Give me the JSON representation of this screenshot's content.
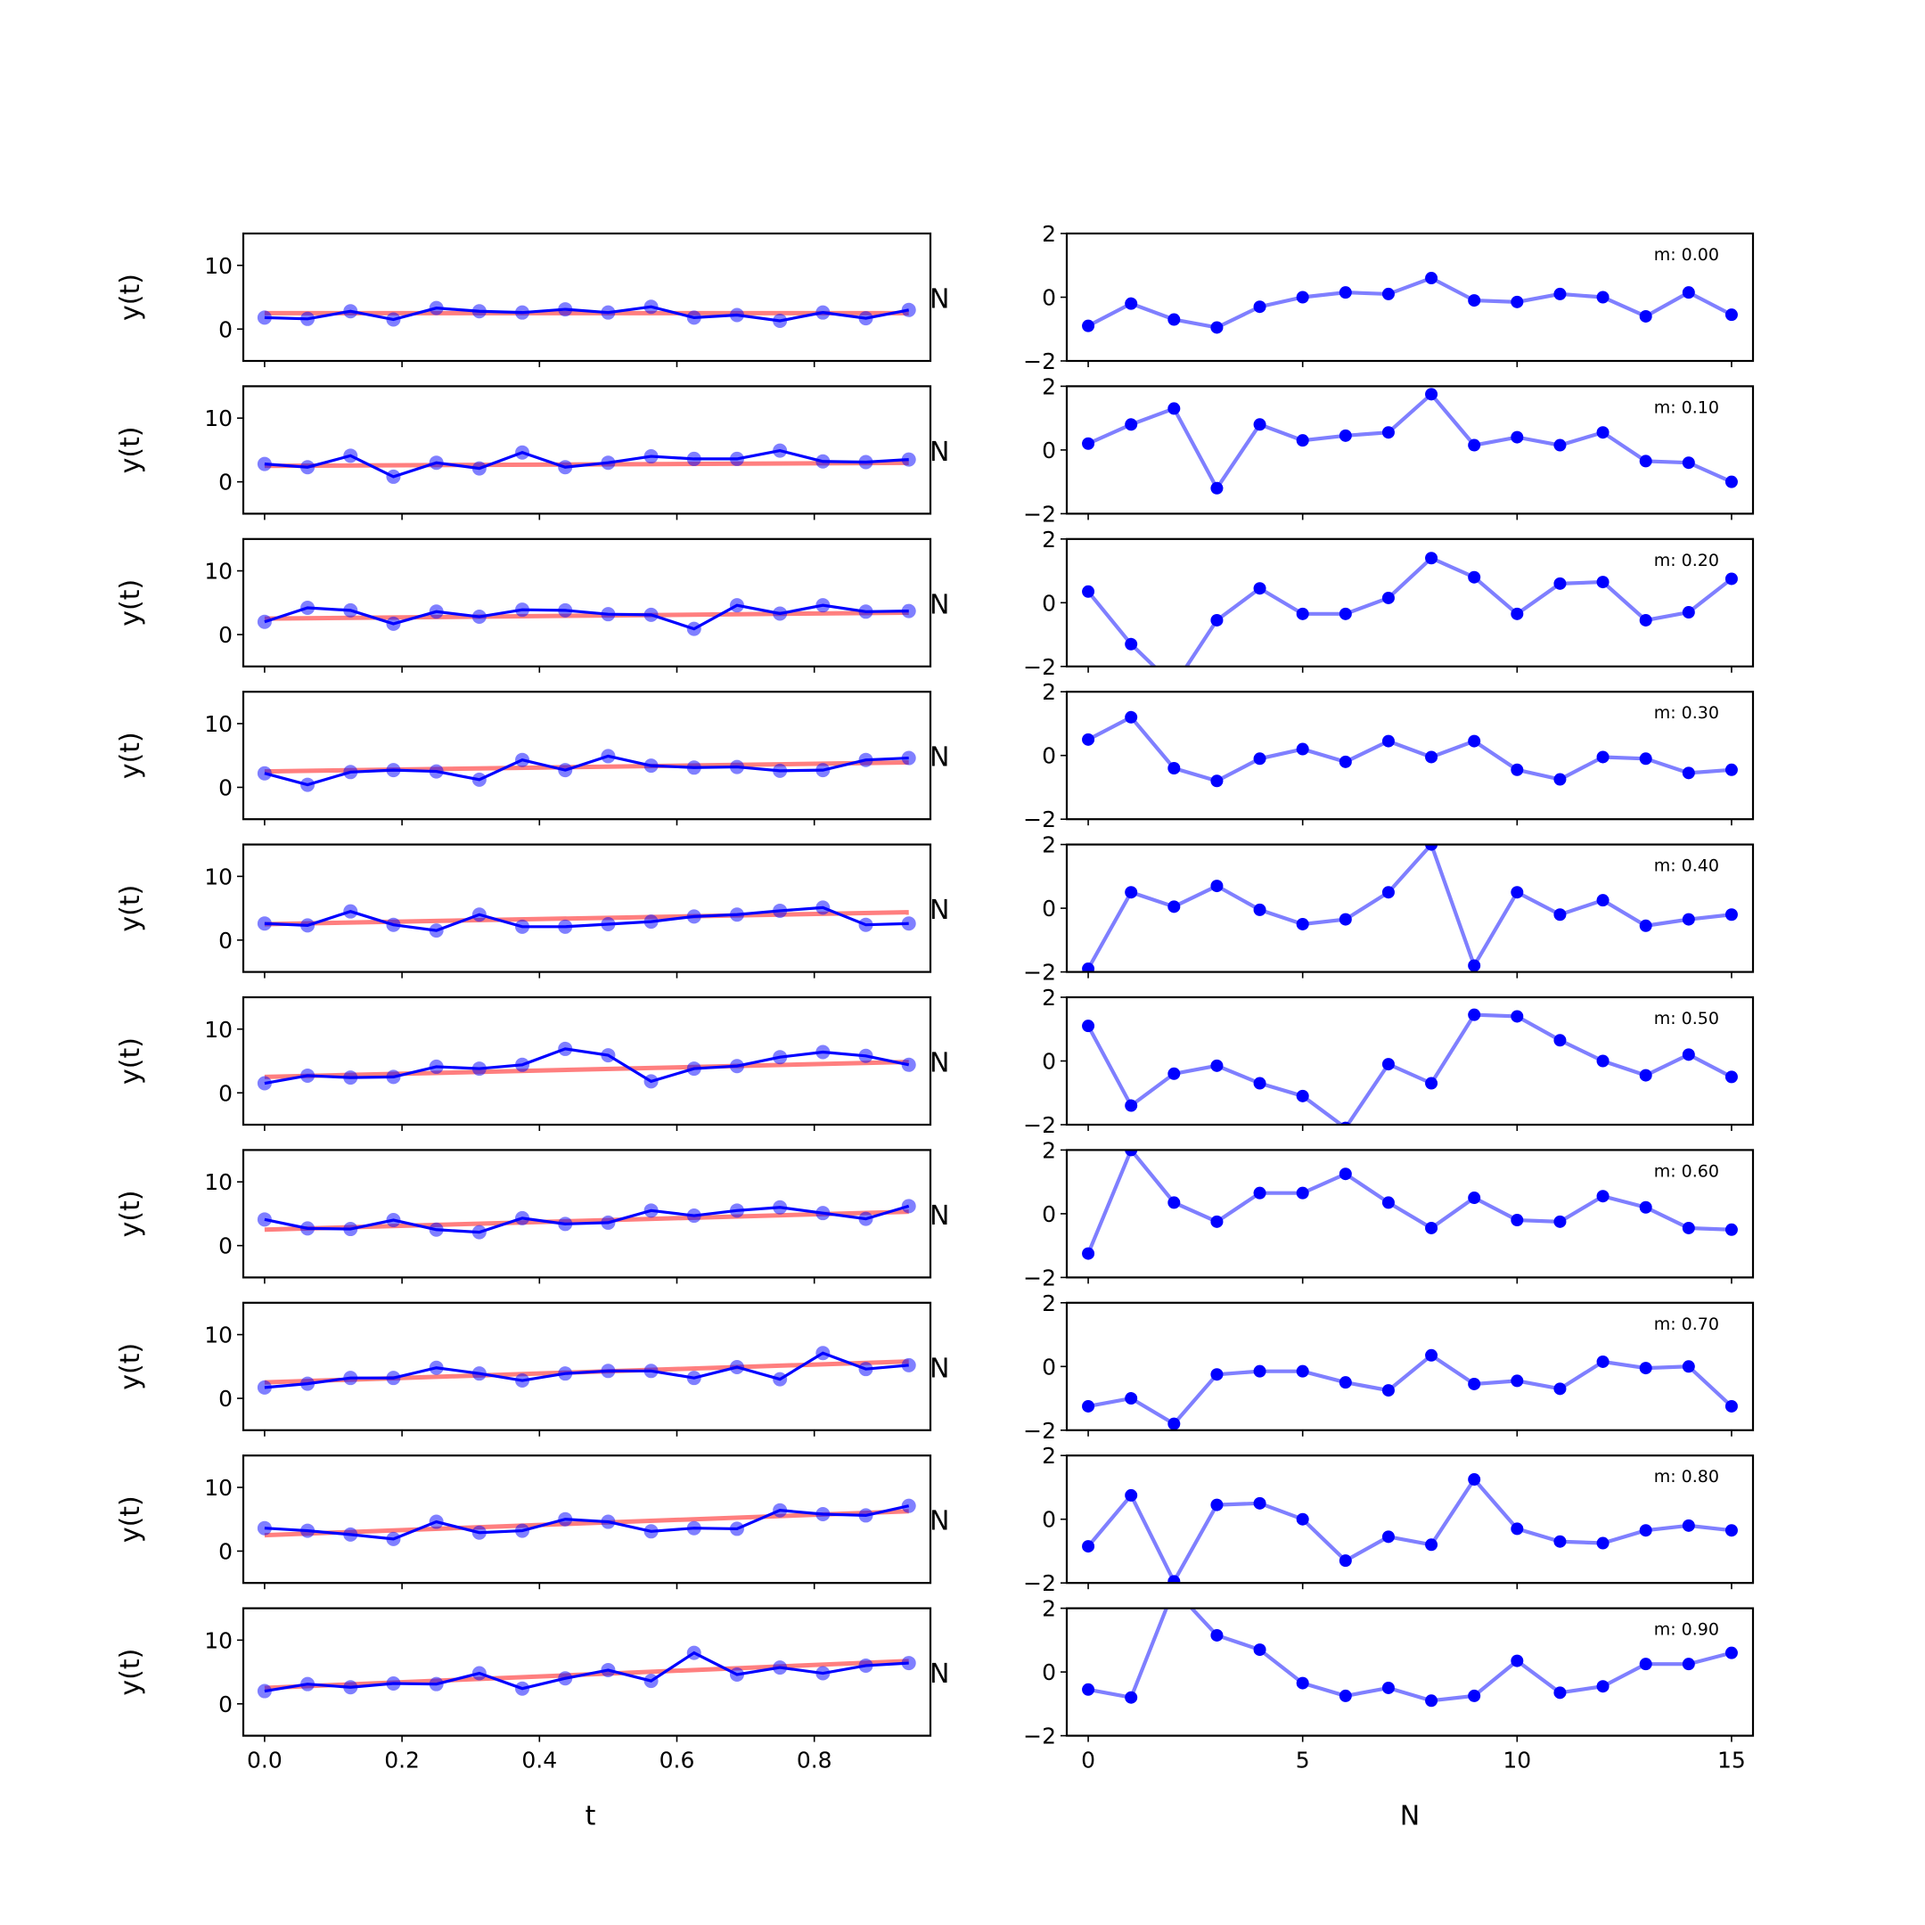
{
  "chart_data": {
    "type": "line",
    "layout": "10 rows x 2 columns of subplots",
    "left_column": {
      "xlabel": "t",
      "ylabel": "y(t)",
      "xlim": [
        -0.031,
        0.969
      ],
      "ylim": [
        -5,
        15
      ],
      "xticks": [
        0.0,
        0.2,
        0.4,
        0.6,
        0.8
      ],
      "xtick_labels": [
        "0.0",
        "0.2",
        "0.4",
        "0.6",
        "0.8"
      ],
      "yticks": [
        0,
        10
      ],
      "ytick_labels": [
        "0",
        "10"
      ],
      "t": [
        0,
        0.0625,
        0.125,
        0.1875,
        0.25,
        0.3125,
        0.375,
        0.4375,
        0.5,
        0.5625,
        0.625,
        0.6875,
        0.75,
        0.8125,
        0.875,
        0.9375
      ],
      "trend": {
        "intercept": 2.5,
        "slope_per_m": 5.0,
        "color": "#ff0000"
      },
      "series_color": "#0000ff"
    },
    "right_column": {
      "xlabel": "N",
      "ylabel": "N",
      "xlim": [
        -0.5,
        15.5
      ],
      "ylim": [
        -2,
        2
      ],
      "xticks": [
        0,
        5,
        10,
        15
      ],
      "xtick_labels": [
        "0",
        "5",
        "10",
        "15"
      ],
      "yticks": [
        -2,
        0,
        2
      ],
      "ytick_labels": [
        "−2",
        "0",
        "2"
      ],
      "N": [
        0,
        1,
        2,
        3,
        4,
        5,
        6,
        7,
        8,
        9,
        10,
        11,
        12,
        13,
        14,
        15
      ],
      "series_color": "#0000ff"
    },
    "panels": [
      {
        "label": "m: 0.00",
        "m": 0.0,
        "y": [
          1.8,
          1.6,
          2.8,
          1.5,
          3.3,
          2.8,
          2.6,
          3.1,
          2.6,
          3.5,
          1.8,
          2.2,
          1.3,
          2.6,
          1.7,
          3.0
        ],
        "z": [
          -0.9,
          -0.2,
          -0.7,
          -0.95,
          -0.3,
          0.0,
          0.15,
          0.1,
          0.6,
          -0.1,
          -0.15,
          0.1,
          0.0,
          -0.6,
          0.15,
          -0.55
        ]
      },
      {
        "label": "m: 0.10",
        "m": 0.1,
        "y": [
          2.8,
          2.3,
          4.1,
          0.8,
          3.0,
          2.1,
          4.6,
          2.3,
          3.0,
          4.0,
          3.6,
          3.6,
          4.9,
          3.2,
          3.1,
          3.5
        ],
        "z": [
          0.2,
          0.8,
          1.3,
          -1.2,
          0.8,
          0.3,
          0.45,
          0.55,
          1.75,
          0.15,
          0.4,
          0.15,
          0.55,
          -0.35,
          -0.4,
          -1.0
        ]
      },
      {
        "label": "m: 0.20",
        "m": 0.2,
        "y": [
          2.0,
          4.2,
          3.8,
          1.7,
          3.6,
          2.8,
          3.9,
          3.8,
          3.2,
          3.1,
          0.9,
          4.6,
          3.3,
          4.6,
          3.6,
          3.7
        ],
        "z": [
          0.35,
          -1.3,
          -2.6,
          -0.55,
          0.45,
          -0.35,
          -0.35,
          0.15,
          1.4,
          0.8,
          -0.35,
          0.6,
          0.65,
          -0.55,
          -0.3,
          0.75
        ]
      },
      {
        "label": "m: 0.30",
        "m": 0.3,
        "y": [
          2.2,
          0.4,
          2.4,
          2.7,
          2.5,
          1.2,
          4.3,
          2.7,
          4.9,
          3.4,
          3.1,
          3.2,
          2.6,
          2.7,
          4.3,
          4.6
        ],
        "z": [
          0.5,
          1.2,
          -0.4,
          -0.8,
          -0.1,
          0.2,
          -0.2,
          0.45,
          -0.05,
          0.45,
          -0.45,
          -0.75,
          -0.05,
          -0.1,
          -0.55,
          -0.45
        ]
      },
      {
        "label": "m: 0.40",
        "m": 0.4,
        "y": [
          2.6,
          2.3,
          4.5,
          2.4,
          1.5,
          4.0,
          2.1,
          2.1,
          2.5,
          2.9,
          3.7,
          4.0,
          4.6,
          5.1,
          2.4,
          2.6
        ],
        "z": [
          -1.9,
          0.5,
          0.05,
          0.7,
          -0.05,
          -0.5,
          -0.35,
          0.5,
          2.0,
          -1.8,
          0.5,
          -0.2,
          0.25,
          -0.55,
          -0.35,
          -0.2
        ]
      },
      {
        "label": "m: 0.50",
        "m": 0.5,
        "y": [
          1.5,
          2.7,
          2.4,
          2.5,
          4.1,
          3.8,
          4.4,
          6.9,
          5.9,
          1.8,
          3.8,
          4.2,
          5.6,
          6.4,
          5.8,
          4.4
        ],
        "z": [
          1.1,
          -1.4,
          -0.4,
          -0.15,
          -0.7,
          -1.1,
          -2.1,
          -0.1,
          -0.7,
          1.45,
          1.4,
          0.65,
          0.0,
          -0.45,
          0.2,
          -0.5
        ]
      },
      {
        "label": "m: 0.60",
        "m": 0.6,
        "y": [
          4.1,
          2.7,
          2.6,
          4.0,
          2.5,
          2.1,
          4.3,
          3.4,
          3.6,
          5.5,
          4.7,
          5.5,
          6.0,
          5.1,
          4.2,
          6.2
        ],
        "z": [
          -1.25,
          2.0,
          0.35,
          -0.25,
          0.65,
          0.65,
          1.25,
          0.35,
          -0.45,
          0.5,
          -0.2,
          -0.25,
          0.55,
          0.2,
          -0.45,
          -0.5
        ]
      },
      {
        "label": "m: 0.70",
        "m": 0.7,
        "y": [
          1.7,
          2.3,
          3.2,
          3.2,
          4.8,
          3.9,
          2.8,
          3.9,
          4.3,
          4.3,
          3.2,
          4.9,
          3.0,
          7.1,
          4.6,
          5.2
        ],
        "z": [
          -1.25,
          -1.0,
          -1.8,
          -0.25,
          -0.15,
          -0.15,
          -0.5,
          -0.75,
          0.35,
          -0.55,
          -0.45,
          -0.7,
          0.15,
          -0.05,
          0.0,
          -1.25
        ]
      },
      {
        "label": "m: 0.80",
        "m": 0.8,
        "y": [
          3.6,
          3.2,
          2.6,
          1.9,
          4.6,
          2.9,
          3.2,
          5.0,
          4.6,
          3.1,
          3.6,
          3.5,
          6.4,
          5.8,
          5.6,
          7.1
        ],
        "z": [
          -0.85,
          0.75,
          -1.95,
          0.45,
          0.5,
          0.0,
          -1.3,
          -0.55,
          -0.8,
          1.25,
          -0.3,
          -0.7,
          -0.75,
          -0.35,
          -0.2,
          -0.35
        ]
      },
      {
        "label": "m: 0.90",
        "m": 0.9,
        "y": [
          2.0,
          3.1,
          2.6,
          3.2,
          3.1,
          4.8,
          2.4,
          4.0,
          5.3,
          3.6,
          8.0,
          4.6,
          5.7,
          4.8,
          6.0,
          6.4
        ],
        "z": [
          -0.55,
          -0.8,
          2.6,
          1.15,
          0.7,
          -0.35,
          -0.75,
          -0.5,
          -0.9,
          -0.75,
          0.35,
          -0.65,
          -0.45,
          0.25,
          0.25,
          0.6
        ]
      }
    ]
  }
}
